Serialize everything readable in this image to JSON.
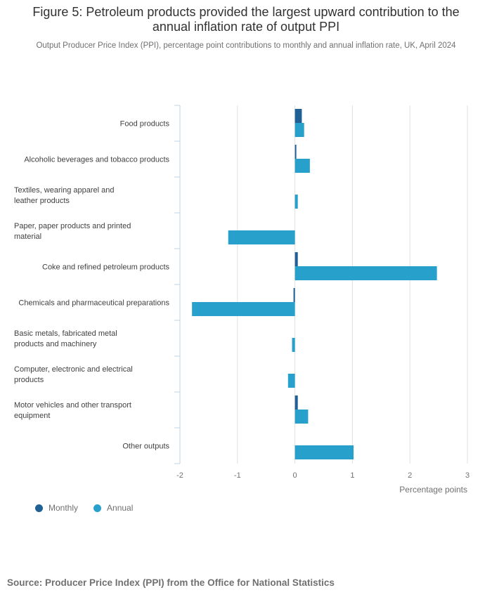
{
  "figure": {
    "title": "Figure 5: Petroleum products provided the largest upward contribution to the annual inflation rate of output PPI",
    "subtitle": "Output Producer Price Index (PPI), percentage point contributions to monthly and annual inflation rate, UK, April 2024",
    "source": "Source: Producer Price Index (PPI) from the Office for National Statistics"
  },
  "colors": {
    "monthly": "#206095",
    "annual": "#27a0cc",
    "grid": "#e0e0e0",
    "axis": "#bcd3e6",
    "text": "#707071"
  },
  "chart_data": {
    "type": "bar",
    "orientation": "horizontal",
    "categories": [
      "Food products",
      "Alcoholic beverages and tobacco products",
      "Textiles, wearing apparel and leather products",
      "Paper, paper products and printed material",
      "Coke and refined petroleum products",
      "Chemicals and pharmaceutical preparations",
      "Basic metals, fabricated metal products and machinery",
      "Computer, electronic and electrical products",
      "Motor vehicles and other transport equipment",
      "Other outputs"
    ],
    "series": [
      {
        "name": "Monthly",
        "values": [
          0.12,
          0.02,
          0.0,
          0.0,
          0.05,
          -0.02,
          0.0,
          0.0,
          0.05,
          0.0
        ]
      },
      {
        "name": "Annual",
        "values": [
          0.16,
          0.26,
          0.05,
          -1.16,
          2.47,
          -1.79,
          -0.05,
          -0.12,
          0.23,
          1.02
        ]
      }
    ],
    "xlabel": "Percentage points",
    "xlim": [
      -2,
      3
    ],
    "xticks": [
      "-2",
      "-1",
      "0",
      "1",
      "2",
      "3"
    ],
    "legend_position": "bottom-left",
    "grid": "vertical"
  }
}
